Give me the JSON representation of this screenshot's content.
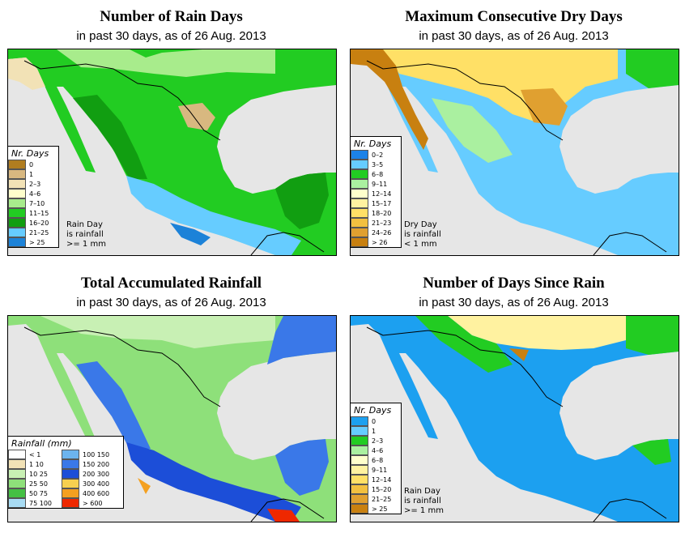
{
  "date": "26 Aug. 2013",
  "panels": [
    {
      "title": "Number of Rain Days",
      "subtitle": "in past 30 days, as of  26 Aug. 2013",
      "legend": {
        "title": "Nr. Days",
        "items": [
          {
            "label": "0",
            "color": "#b07d20"
          },
          {
            "label": "1",
            "color": "#d8b880"
          },
          {
            "label": "2–3",
            "color": "#f2e2b6"
          },
          {
            "label": "4–6",
            "color": "#ffffcc"
          },
          {
            "label": "7–10",
            "color": "#a8ec8c"
          },
          {
            "label": "11–15",
            "color": "#22cc22"
          },
          {
            "label": "16–20",
            "color": "#119e11"
          },
          {
            "label": "21–25",
            "color": "#66ccff"
          },
          {
            "label": "> 25",
            "color": "#1c82d8"
          }
        ]
      },
      "note": [
        "Rain Day",
        "is rainfall",
        ">= 1 mm"
      ]
    },
    {
      "title": "Maximum Consecutive Dry Days",
      "subtitle": "in past 30 days, as of  26 Aug. 2013",
      "legend": {
        "title": "Nr. Days",
        "items": [
          {
            "label": "0–2",
            "color": "#1c82e8"
          },
          {
            "label": "3–5",
            "color": "#66ccff"
          },
          {
            "label": "6–8",
            "color": "#22cc22"
          },
          {
            "label": "9–11",
            "color": "#aaf0a0"
          },
          {
            "label": "12–14",
            "color": "#ffffcc"
          },
          {
            "label": "15–17",
            "color": "#fff2a0"
          },
          {
            "label": "18–20",
            "color": "#ffe066"
          },
          {
            "label": "21–23",
            "color": "#f2c040"
          },
          {
            "label": "24–26",
            "color": "#e0a030"
          },
          {
            "label": "> 26",
            "color": "#c88010"
          }
        ]
      },
      "note": [
        "Dry Day",
        "is rainfall",
        "< 1 mm"
      ]
    },
    {
      "title": "Total Accumulated Rainfall",
      "subtitle": "in past 30 days, as of  26 Aug. 2013",
      "legend": {
        "title": "Rainfall (mm)",
        "items": [
          {
            "label": "< 1",
            "color": "#ffffff"
          },
          {
            "label": "1   10",
            "color": "#f2e2b6"
          },
          {
            "label": "10   25",
            "color": "#c8f0b4"
          },
          {
            "label": "25   50",
            "color": "#8ee07a"
          },
          {
            "label": "50   75",
            "color": "#44c044"
          },
          {
            "label": "75   100",
            "color": "#a8dcf4"
          },
          {
            "label": "100   150",
            "color": "#6cb4ee"
          },
          {
            "label": "150   200",
            "color": "#3a78e8"
          },
          {
            "label": "200   300",
            "color": "#1c4ed8"
          },
          {
            "label": "300   400",
            "color": "#f6d050"
          },
          {
            "label": "400   600",
            "color": "#f4a020"
          },
          {
            "label": "> 600",
            "color": "#ee2800"
          }
        ]
      },
      "note": []
    },
    {
      "title": "Number of Days Since Rain",
      "subtitle": "in past 30 days, as of  26 Aug. 2013",
      "legend": {
        "title": "Nr. Days",
        "items": [
          {
            "label": "0",
            "color": "#1ca0f0"
          },
          {
            "label": "1",
            "color": "#66ccff"
          },
          {
            "label": "2–3",
            "color": "#22cc22"
          },
          {
            "label": "4–6",
            "color": "#aaf0a0"
          },
          {
            "label": "6–8",
            "color": "#ffffcc"
          },
          {
            "label": "9–11",
            "color": "#fff2a0"
          },
          {
            "label": "12–14",
            "color": "#ffe066"
          },
          {
            "label": "15–20",
            "color": "#f2c040"
          },
          {
            "label": "21–25",
            "color": "#e0a030"
          },
          {
            "label": "> 25",
            "color": "#c88010"
          }
        ]
      },
      "note": [
        "Rain Day",
        "is rainfall",
        ">= 1 mm"
      ]
    }
  ],
  "colors": {
    "ocean": "#e6e6e6",
    "border": "#000000"
  }
}
